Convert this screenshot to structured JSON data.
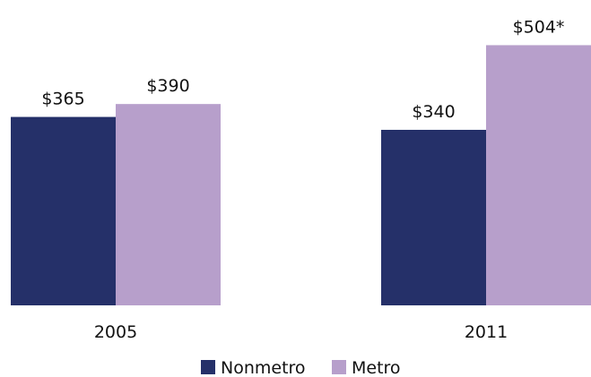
{
  "chart_data": {
    "type": "bar",
    "categories": [
      "2005",
      "2011"
    ],
    "series": [
      {
        "name": "Nonmetro",
        "color": "#253069",
        "values": [
          365,
          340
        ],
        "labels": [
          "$365",
          "$340"
        ]
      },
      {
        "name": "Metro",
        "color": "#b79fcb",
        "values": [
          390,
          504
        ],
        "labels": [
          "$390",
          "$504*"
        ]
      }
    ],
    "title": "",
    "xlabel": "",
    "ylabel": "",
    "ylim": [
      0,
      520
    ],
    "grid": false,
    "legend_position": "bottom-center"
  }
}
